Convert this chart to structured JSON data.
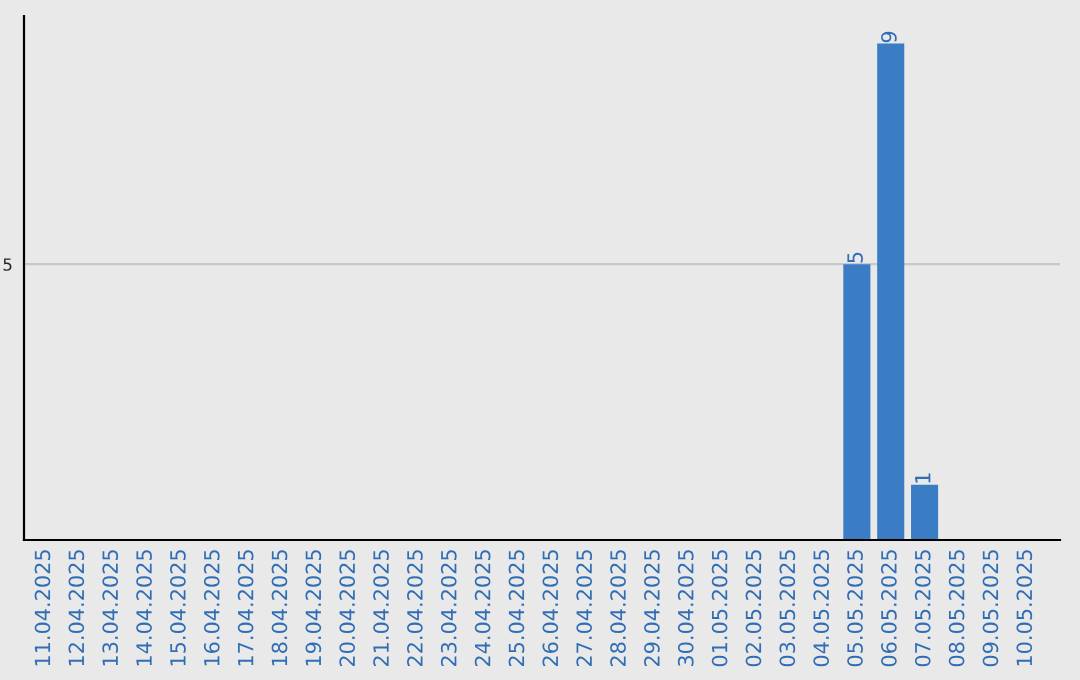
{
  "chart_data": {
    "type": "bar",
    "categories": [
      "11.04.2025",
      "12.04.2025",
      "13.04.2025",
      "14.04.2025",
      "15.04.2025",
      "16.04.2025",
      "17.04.2025",
      "18.04.2025",
      "19.04.2025",
      "20.04.2025",
      "21.04.2025",
      "22.04.2025",
      "23.04.2025",
      "24.04.2025",
      "25.04.2025",
      "26.04.2025",
      "27.04.2025",
      "28.04.2025",
      "29.04.2025",
      "30.04.2025",
      "01.05.2025",
      "02.05.2025",
      "03.05.2025",
      "04.05.2025",
      "05.05.2025",
      "06.05.2025",
      "07.05.2025",
      "08.05.2025",
      "09.05.2025",
      "10.05.2025"
    ],
    "values": [
      null,
      null,
      null,
      null,
      null,
      null,
      null,
      null,
      null,
      null,
      null,
      null,
      null,
      null,
      null,
      null,
      null,
      null,
      null,
      null,
      null,
      null,
      null,
      null,
      5,
      9,
      1,
      null,
      null,
      null
    ],
    "data_labels": true,
    "color": "#3b7dc4",
    "ylim": [
      0,
      9.5
    ],
    "yticks": [
      5
    ],
    "grid": "y",
    "legend": false
  }
}
